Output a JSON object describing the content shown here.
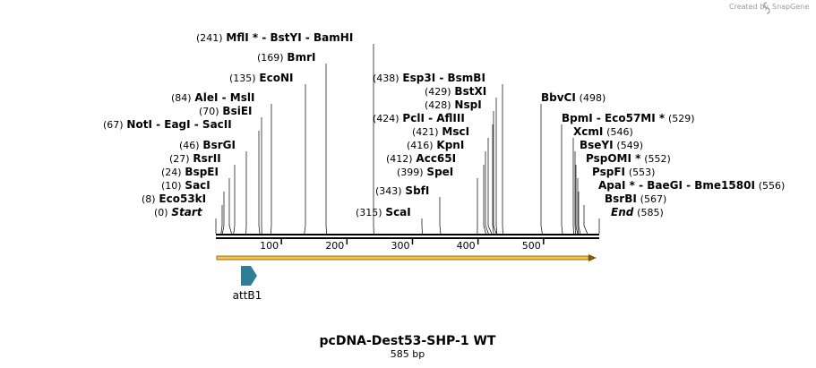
{
  "credit": {
    "prefix": "Created by",
    "brand": "SnapGene"
  },
  "title": "pcDNA-Dest53-SHP-1 WT",
  "subtitle": "585 bp",
  "sequence_length": 585,
  "ruler_ticks": [
    "100",
    "200",
    "300",
    "400",
    "500"
  ],
  "feature": {
    "name": "attB1"
  },
  "sites": [
    {
      "pos": "(241)",
      "label": "MflI * - BstYI - BamHI"
    },
    {
      "pos": "(169)",
      "label": "BmrI"
    },
    {
      "pos": "(135)",
      "label": "EcoNI"
    },
    {
      "pos": "(84)",
      "label": "AleI - MslI"
    },
    {
      "pos": "(70)",
      "label": "BsiEI"
    },
    {
      "pos": "(67)",
      "label": "NotI - EagI - SacII"
    },
    {
      "pos": "(46)",
      "label": "BsrGI"
    },
    {
      "pos": "(27)",
      "label": "RsrII"
    },
    {
      "pos": "(24)",
      "label": "BspEI"
    },
    {
      "pos": "(10)",
      "label": "SacI"
    },
    {
      "pos": "(8)",
      "label": "Eco53kI"
    },
    {
      "pos": "(0)",
      "label": "Start"
    },
    {
      "pos": "(438)",
      "label": "Esp3I - BsmBI"
    },
    {
      "pos": "(429)",
      "label": "BstXI"
    },
    {
      "pos": "(428)",
      "label": "NspI"
    },
    {
      "pos": "(424)",
      "label": "PclI - AflIII"
    },
    {
      "pos": "(421)",
      "label": "MscI"
    },
    {
      "pos": "(416)",
      "label": "KpnI"
    },
    {
      "pos": "(412)",
      "label": "Acc65I"
    },
    {
      "pos": "(399)",
      "label": "SpeI"
    },
    {
      "pos": "(343)",
      "label": "SbfI"
    },
    {
      "pos": "(315)",
      "label": "ScaI"
    },
    {
      "pos": "(498)",
      "label": "BbvCI"
    },
    {
      "pos": "(529)",
      "label": "BpmI - Eco57MI *"
    },
    {
      "pos": "(546)",
      "label": "XcmI"
    },
    {
      "pos": "(549)",
      "label": "BseYI"
    },
    {
      "pos": "(552)",
      "label": "PspOMI *"
    },
    {
      "pos": "(553)",
      "label": "PspFI"
    },
    {
      "pos": "(556)",
      "label": "ApaI * - BaeGI - Bme1580I"
    },
    {
      "pos": "(567)",
      "label": "BsrBI"
    },
    {
      "pos": "(585)",
      "label": "End"
    }
  ],
  "colors": {
    "orf_fill": "#f5c242",
    "orf_stroke": "#7a5a10",
    "feature_fill": "#2e7f96",
    "backbone": "#000000"
  }
}
